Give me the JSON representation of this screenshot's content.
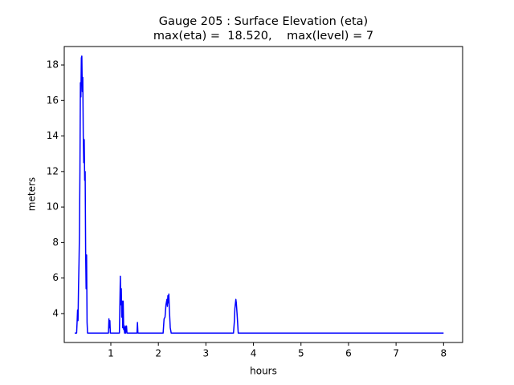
{
  "chart_data": {
    "type": "line",
    "title": "Gauge 205 : Surface Elevation (eta)",
    "subtitle": "max(eta) =  18.520,    max(level) = 7",
    "xlabel": "hours",
    "ylabel": "meters",
    "xlim": [
      0.02,
      8.4
    ],
    "ylim": [
      2.37,
      19.04
    ],
    "xticks": [
      1,
      2,
      3,
      4,
      5,
      6,
      7,
      8
    ],
    "yticks": [
      4,
      6,
      8,
      10,
      12,
      14,
      16,
      18
    ],
    "series": [
      {
        "color": "#0000ff",
        "x": [
          0.24,
          0.28,
          0.29,
          0.3,
          0.31,
          0.32,
          0.33,
          0.34,
          0.35,
          0.36,
          0.37,
          0.38,
          0.39,
          0.4,
          0.41,
          0.42,
          0.43,
          0.44,
          0.45,
          0.46,
          0.47,
          0.48,
          0.49,
          0.5,
          0.51,
          0.95,
          0.96,
          0.97,
          0.98,
          0.99,
          1.18,
          1.19,
          1.2,
          1.21,
          1.22,
          1.23,
          1.24,
          1.25,
          1.26,
          1.27,
          1.28,
          1.29,
          1.3,
          1.31,
          1.33,
          1.34,
          1.55,
          1.56,
          1.57,
          2.1,
          2.12,
          2.14,
          2.16,
          2.18,
          2.19,
          2.2,
          2.21,
          2.22,
          2.23,
          2.25,
          2.27,
          3.58,
          3.6,
          3.61,
          3.63,
          3.64,
          3.66,
          3.68,
          8.0
        ],
        "values": [
          2.9,
          2.9,
          3.5,
          4.2,
          3.6,
          5.5,
          6.8,
          8.5,
          12,
          17,
          16.2,
          18.4,
          18.5,
          16.5,
          17.3,
          14,
          12.5,
          13.8,
          11.5,
          12,
          7.5,
          5.4,
          7.3,
          3.5,
          2.9,
          2.9,
          3.7,
          3.2,
          3.6,
          2.9,
          2.9,
          4.5,
          6.1,
          4.5,
          5.4,
          3.8,
          4.7,
          3.2,
          4.7,
          3.1,
          3.2,
          2.9,
          3.3,
          2.9,
          3.3,
          2.9,
          2.9,
          3.5,
          2.9,
          2.9,
          3.7,
          3.8,
          4.5,
          4.8,
          4.4,
          5.0,
          4.6,
          5.1,
          4.3,
          3.2,
          2.9,
          2.9,
          3.6,
          4.3,
          4.8,
          4.6,
          3.8,
          2.9,
          2.9
        ]
      }
    ]
  }
}
